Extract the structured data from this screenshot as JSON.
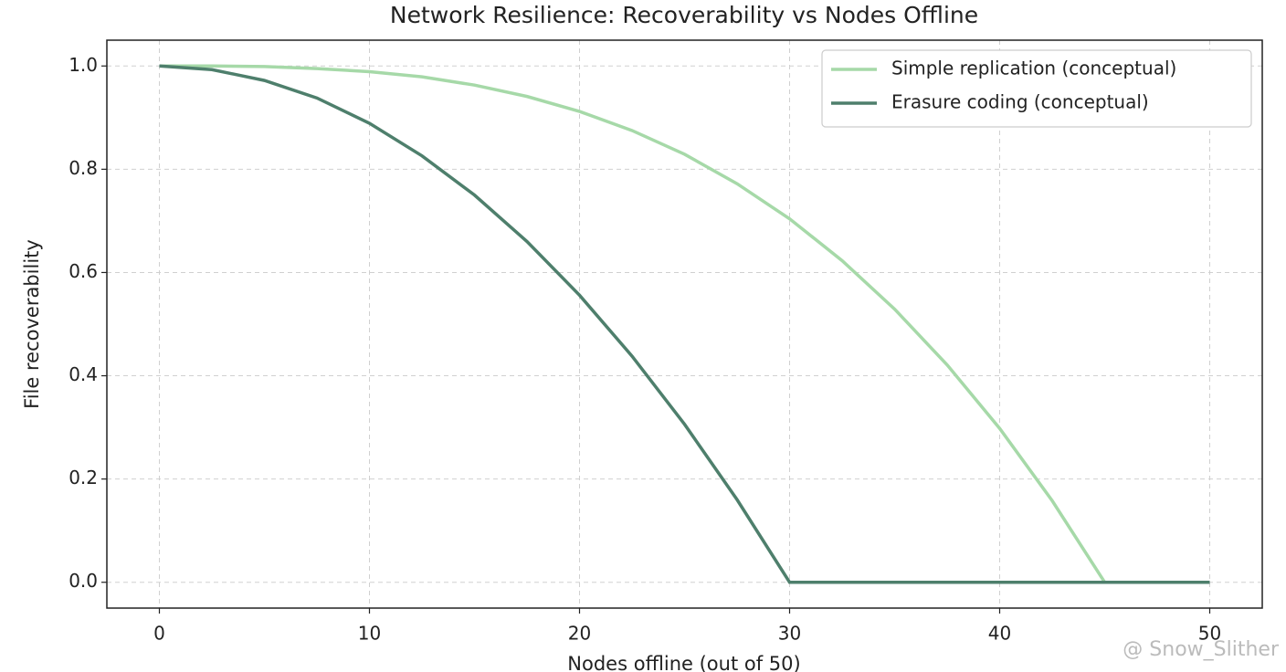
{
  "chart_data": {
    "type": "line",
    "title": "Network Resilience: Recoverability vs Nodes Offline",
    "x_label": "Nodes offline (out of 50)",
    "y_label": "File recoverability",
    "x": [
      0,
      2.5,
      5,
      7.5,
      10,
      12.5,
      15,
      17.5,
      20,
      22.5,
      25,
      27.5,
      30,
      32.5,
      35,
      37.5,
      40,
      42.5,
      45,
      47.5,
      50
    ],
    "series": [
      {
        "name": "Simple replication (conceptual)",
        "color": "#a6d9a8",
        "values": [
          1.0,
          1.0,
          0.999,
          0.995,
          0.989,
          0.979,
          0.963,
          0.941,
          0.912,
          0.875,
          0.829,
          0.772,
          0.704,
          0.623,
          0.529,
          0.421,
          0.298,
          0.158,
          0,
          0,
          0
        ]
      },
      {
        "name": "Erasure coding (conceptual)",
        "color": "#4e7f6c",
        "values": [
          1.0,
          0.993,
          0.972,
          0.938,
          0.889,
          0.826,
          0.75,
          0.66,
          0.556,
          0.438,
          0.306,
          0.16,
          0,
          0,
          0,
          0,
          0,
          0,
          0,
          0,
          0
        ]
      }
    ],
    "xlim": [
      -2.5,
      52.5
    ],
    "ylim": [
      -0.05,
      1.05
    ],
    "xticks": [
      0,
      10,
      20,
      30,
      40,
      50
    ],
    "yticks": [
      {
        "value": 0,
        "label": "0.0"
      },
      {
        "value": 0.2,
        "label": "0.2"
      },
      {
        "value": 0.4,
        "label": "0.4"
      },
      {
        "value": 0.6,
        "label": "0.6"
      },
      {
        "value": 0.8,
        "label": "0.8"
      },
      {
        "value": 1,
        "label": "1.0"
      }
    ],
    "grid": true,
    "legend": "upper right",
    "watermark": "@ Snow_Slither"
  }
}
